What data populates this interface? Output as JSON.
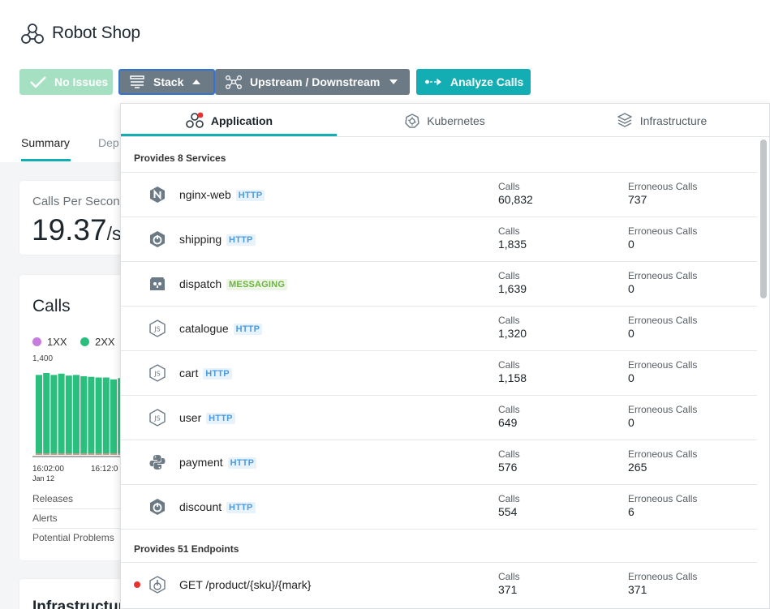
{
  "app": {
    "title": "Robot Shop"
  },
  "toolbar": {
    "no_issues": "No Issues",
    "stack": "Stack",
    "upstream_downstream": "Upstream / Downstream",
    "analyze_calls": "Analyze Calls"
  },
  "page_tabs": {
    "summary": "Summary",
    "dep": "Dep"
  },
  "calls_per_second": {
    "label": "Calls Per Second",
    "value": "19.37",
    "unit": "/s"
  },
  "calls_card": {
    "title": "Calls",
    "legend": [
      {
        "label": "1XX",
        "color": "#c77de0"
      },
      {
        "label": "2XX",
        "color": "#2bbf7e"
      }
    ],
    "y_top": "1,400",
    "x_ticks": [
      {
        "time": "16:02:00",
        "date": "Jan 12"
      },
      {
        "time": "16:12:0",
        "date": ""
      }
    ],
    "bars_2xx": [
      1230,
      1260,
      1230,
      1250,
      1220,
      1230,
      1210,
      1200,
      1190,
      1190,
      1160,
      1180,
      1170
    ],
    "bars_1xx": [
      20,
      20,
      20,
      20,
      20,
      20,
      20,
      20,
      20,
      20,
      20,
      20,
      20
    ],
    "rows": [
      "Releases",
      "Alerts",
      "Potential Problems"
    ]
  },
  "infra_card": {
    "title": "Infrastructure"
  },
  "stack_panel": {
    "tabs": [
      "Application",
      "Kubernetes",
      "Infrastructure"
    ],
    "services_heading": "Provides 8 Services",
    "calls_label": "Calls",
    "err_label": "Erroneous Calls",
    "services": [
      {
        "name": "nginx-web",
        "type": "HTTP",
        "calls": "60,832",
        "errors": "737",
        "icon": "nginx-icon"
      },
      {
        "name": "shipping",
        "type": "HTTP",
        "calls": "1,835",
        "errors": "0",
        "icon": "springboot-icon"
      },
      {
        "name": "dispatch",
        "type": "MESSAGING",
        "calls": "1,639",
        "errors": "0",
        "icon": "golang-icon"
      },
      {
        "name": "catalogue",
        "type": "HTTP",
        "calls": "1,320",
        "errors": "0",
        "icon": "nodejs-icon"
      },
      {
        "name": "cart",
        "type": "HTTP",
        "calls": "1,158",
        "errors": "0",
        "icon": "nodejs-icon"
      },
      {
        "name": "user",
        "type": "HTTP",
        "calls": "649",
        "errors": "0",
        "icon": "nodejs-icon"
      },
      {
        "name": "payment",
        "type": "HTTP",
        "calls": "576",
        "errors": "265",
        "icon": "python-icon"
      },
      {
        "name": "discount",
        "type": "HTTP",
        "calls": "554",
        "errors": "6",
        "icon": "springboot-icon"
      }
    ],
    "endpoints_heading": "Provides 51 Endpoints",
    "endpoints": [
      {
        "name": "GET /product/{sku}/{mark}",
        "calls": "371",
        "errors": "371",
        "icon": "endpoint-icon",
        "status_color": "#e8322f"
      }
    ]
  }
}
